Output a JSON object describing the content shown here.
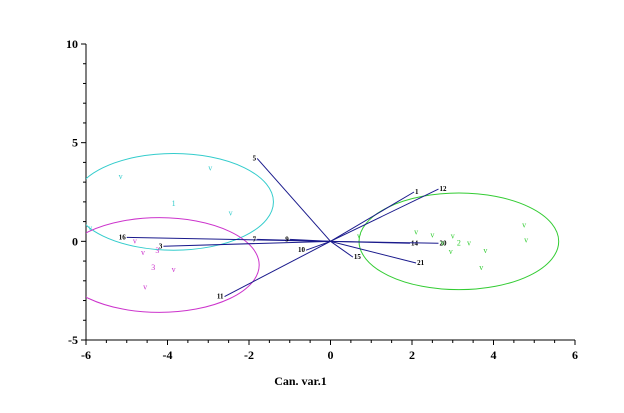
{
  "chart_data": {
    "type": "scatter",
    "xlabel": "Can. var.1",
    "ylabel": "",
    "xlim": [
      -6,
      6
    ],
    "ylim": [
      -5,
      10
    ],
    "xticks": [
      -6,
      -4,
      -2,
      0,
      2,
      4,
      6
    ],
    "yticks": [
      -5,
      0,
      5,
      10
    ],
    "grid": false,
    "groups": [
      {
        "color": "#33cccc",
        "ellipse": {
          "cx": -3.85,
          "cy": 2.0,
          "rx": 2.45,
          "ry": 2.45
        },
        "points": [
          {
            "x": -5.15,
            "y": 3.3,
            "label": "v"
          },
          {
            "x": -2.95,
            "y": 3.75,
            "label": "v"
          },
          {
            "x": -3.85,
            "y": 1.95,
            "label": "1"
          },
          {
            "x": -2.45,
            "y": 1.45,
            "label": "v"
          },
          {
            "x": -5.9,
            "y": 0.7,
            "label": "v"
          }
        ]
      },
      {
        "color": "#cc33cc",
        "ellipse": {
          "cx": -4.2,
          "cy": -1.2,
          "rx": 2.45,
          "ry": 2.4
        },
        "points": [
          {
            "x": -4.8,
            "y": 0.05,
            "label": "v"
          },
          {
            "x": -4.25,
            "y": -0.45,
            "label": "3"
          },
          {
            "x": -4.6,
            "y": -0.55,
            "label": "v"
          },
          {
            "x": -4.35,
            "y": -1.3,
            "label": "3"
          },
          {
            "x": -3.85,
            "y": -1.4,
            "label": "v"
          },
          {
            "x": -4.55,
            "y": -2.3,
            "label": "v"
          }
        ]
      },
      {
        "color": "#33cc33",
        "ellipse": {
          "cx": 3.15,
          "cy": 0.0,
          "rx": 2.45,
          "ry": 2.45
        },
        "points": [
          {
            "x": 0.7,
            "y": 0.3,
            "label": "v"
          },
          {
            "x": 2.1,
            "y": 0.5,
            "label": "v"
          },
          {
            "x": 2.5,
            "y": 0.35,
            "label": "v"
          },
          {
            "x": 3.0,
            "y": 0.3,
            "label": "v"
          },
          {
            "x": 3.15,
            "y": -0.05,
            "label": "2"
          },
          {
            "x": 3.4,
            "y": -0.05,
            "label": "v"
          },
          {
            "x": 2.95,
            "y": -0.5,
            "label": "v"
          },
          {
            "x": 3.8,
            "y": -0.45,
            "label": "v"
          },
          {
            "x": 3.7,
            "y": -1.3,
            "label": "v"
          },
          {
            "x": 4.75,
            "y": 0.85,
            "label": "v"
          },
          {
            "x": 4.8,
            "y": 0.1,
            "label": "v"
          },
          {
            "x": 2.75,
            "y": -0.05,
            "label": "v"
          }
        ]
      }
    ],
    "vectors": [
      {
        "x": 2.05,
        "y": 2.5,
        "label": "1"
      },
      {
        "x": -1.8,
        "y": 4.2,
        "label": "5"
      },
      {
        "x": 2.65,
        "y": 2.65,
        "label": "12"
      },
      {
        "x": -5.0,
        "y": 0.2,
        "label": "16"
      },
      {
        "x": -4.1,
        "y": -0.25,
        "label": "3"
      },
      {
        "x": -1.8,
        "y": 0.1,
        "label": "7"
      },
      {
        "x": -1.0,
        "y": 0.1,
        "label": "9"
      },
      {
        "x": -0.6,
        "y": -0.45,
        "label": "10"
      },
      {
        "x": -2.6,
        "y": -2.8,
        "label": "11"
      },
      {
        "x": 0.55,
        "y": -0.8,
        "label": "15"
      },
      {
        "x": 1.95,
        "y": -0.1,
        "label": "14"
      },
      {
        "x": 2.65,
        "y": -0.1,
        "label": "20"
      },
      {
        "x": 2.1,
        "y": -1.1,
        "label": "21"
      }
    ]
  }
}
